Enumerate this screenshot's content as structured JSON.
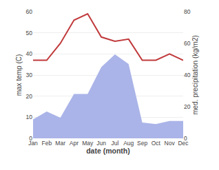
{
  "chart_data": {
    "type": "line",
    "categories": [
      "Jan",
      "Feb",
      "Mar",
      "Apr",
      "May",
      "Jun",
      "Jul",
      "Aug",
      "Sep",
      "Oct",
      "Nov",
      "Dec"
    ],
    "series": [
      {
        "type": "area",
        "axis": "y2",
        "color": "#aab4e8",
        "values": [
          12,
          17,
          13,
          28,
          28,
          45,
          53,
          47,
          10,
          9,
          11,
          11
        ]
      },
      {
        "type": "line",
        "color": "#c0393b",
        "values": [
          37,
          37,
          45,
          56,
          59,
          48,
          46,
          47,
          37,
          37,
          40,
          37
        ]
      }
    ],
    "xlabel": "date (month)",
    "ylabel": "max temp (C)",
    "y2label": "med. precipitation (kg/m2)",
    "ylim": [
      0,
      60
    ],
    "yticks": [
      0,
      10,
      20,
      30,
      40,
      50,
      60
    ],
    "y2lim": [
      0,
      80
    ],
    "y2ticks": [
      0,
      20,
      40,
      60,
      80
    ],
    "grid": true
  }
}
